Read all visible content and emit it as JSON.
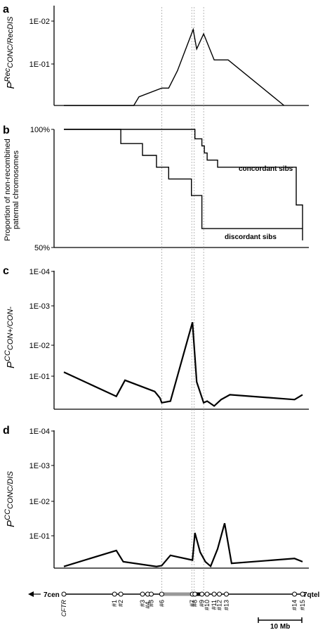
{
  "chart_data": [
    {
      "type": "line",
      "panel": "a",
      "ylabel_main": "P",
      "ylabel_sub": "Rec",
      "ylabel_sub2": "CONC/RecDIS",
      "y_ticks": [
        "1E-02",
        "1E-01"
      ],
      "series": [
        {
          "values": [
            [
              0,
              0
            ],
            [
              20,
              0
            ],
            [
              21.5,
              0.2
            ],
            [
              28,
              0.4
            ],
            [
              30,
              0.4
            ],
            [
              32.5,
              0.8
            ],
            [
              37,
              1.75
            ],
            [
              38,
              1.3
            ],
            [
              40,
              1.65
            ],
            [
              43,
              1.05
            ],
            [
              47,
              1.05
            ],
            [
              63,
              0
            ]
          ]
        }
      ],
      "ylim": [
        0,
        2.3
      ]
    },
    {
      "type": "line",
      "panel": "b",
      "ylabel_line1": "Proportion of non-recombined",
      "ylabel_line2": "paternal chromosomes",
      "y_ticks": [
        "100%",
        "50%"
      ],
      "annotations": [
        "concordant sibs",
        "discordant sibs"
      ],
      "series": [
        {
          "label_ref": "concordant",
          "values": [
            [
              0,
              1.0
            ],
            [
              37.5,
              1.0
            ],
            [
              37.5,
              0.96
            ],
            [
              39.5,
              0.96
            ],
            [
              39.5,
              0.93
            ],
            [
              40.2,
              0.93
            ],
            [
              40.2,
              0.9
            ],
            [
              41,
              0.9
            ],
            [
              41,
              0.87
            ],
            [
              44,
              0.87
            ],
            [
              44,
              0.84
            ],
            [
              66.5,
              0.84
            ],
            [
              66.5,
              0.68
            ],
            [
              68.3,
              0.68
            ],
            [
              68.3,
              0.53
            ]
          ]
        },
        {
          "label_ref": "discordant",
          "values": [
            [
              0,
              1.0
            ],
            [
              16.3,
              1.0
            ],
            [
              16.3,
              0.94
            ],
            [
              22.5,
              0.94
            ],
            [
              22.5,
              0.89
            ],
            [
              26.5,
              0.89
            ],
            [
              26.5,
              0.84
            ],
            [
              30,
              0.84
            ],
            [
              30,
              0.79
            ],
            [
              36.5,
              0.79
            ],
            [
              36.5,
              0.72
            ],
            [
              39.5,
              0.72
            ],
            [
              39.5,
              0.58
            ],
            [
              68.3,
              0.58
            ]
          ]
        }
      ]
    },
    {
      "type": "line",
      "panel": "c",
      "ylabel_main": "P",
      "ylabel_sub": "CC",
      "ylabel_sub2": "CON+/CON-",
      "y_ticks": [
        "1E-04",
        "1E-03",
        "1E-02",
        "1E-01"
      ],
      "series": [
        {
          "values": [
            [
              0,
              1.15
            ],
            [
              15,
              0.4
            ],
            [
              17.5,
              0.9
            ],
            [
              26,
              0.55
            ],
            [
              27.5,
              0.35
            ],
            [
              28,
              0.2
            ],
            [
              30.5,
              0.25
            ],
            [
              36.8,
              2.7
            ],
            [
              38,
              0.85
            ],
            [
              40,
              0.2
            ],
            [
              41,
              0.25
            ],
            [
              43,
              0.1
            ],
            [
              45,
              0.3
            ],
            [
              47.5,
              0.45
            ],
            [
              66,
              0.3
            ],
            [
              68.3,
              0.45
            ]
          ]
        }
      ],
      "ylim": [
        0,
        4.3
      ]
    },
    {
      "type": "line",
      "panel": "d",
      "ylabel_main": "P",
      "ylabel_sub": "CC",
      "ylabel_sub2": "CONC/DIS",
      "y_ticks": [
        "1E-04",
        "1E-03",
        "1E-02",
        "1E-01"
      ],
      "series": [
        {
          "values": [
            [
              0,
              0.05
            ],
            [
              15,
              0.55
            ],
            [
              17,
              0.2
            ],
            [
              26.5,
              0.05
            ],
            [
              28,
              0.08
            ],
            [
              30.5,
              0.4
            ],
            [
              36.8,
              0.25
            ],
            [
              37.5,
              1.1
            ],
            [
              39,
              0.5
            ],
            [
              40.5,
              0.2
            ],
            [
              42,
              0.06
            ],
            [
              44,
              0.6
            ],
            [
              46,
              1.4
            ],
            [
              48,
              0.15
            ],
            [
              66,
              0.3
            ],
            [
              68.3,
              0.2
            ]
          ]
        }
      ],
      "ylim": [
        0,
        4.3
      ]
    }
  ],
  "panel_labels": [
    "a",
    "b",
    "c",
    "d"
  ],
  "map": {
    "left_label": "7cen",
    "right_label": "7qtel",
    "cftr_label": "CFTR",
    "scale_label": "10 Mb",
    "markers": [
      {
        "label": "CFTR",
        "pos": 0
      },
      {
        "label": "#1",
        "pos": 14.5
      },
      {
        "label": "#2",
        "pos": 16.3
      },
      {
        "label": "#3",
        "pos": 22.5
      },
      {
        "label": "#4,",
        "pos": 24.0
      },
      {
        "label": "#5",
        "pos": 25.0
      },
      {
        "label": "#6",
        "pos": 28.0
      },
      {
        "label": "#7",
        "pos": 36.8
      },
      {
        "label": "#8",
        "pos": 37.5
      },
      {
        "label": "#9",
        "pos": 39.5
      },
      {
        "label": "#10",
        "pos": 41.0
      },
      {
        "label": "#11",
        "pos": 43.0
      },
      {
        "label": "#12",
        "pos": 44.5
      },
      {
        "label": "#13",
        "pos": 46.5
      },
      {
        "label": "#14",
        "pos": 66.0
      },
      {
        "label": "#15",
        "pos": 68.3
      }
    ],
    "dashed_positions": [
      28.0,
      36.6,
      37.3,
      40.0
    ]
  },
  "colors": {
    "line": "#000000",
    "grid": "#999999",
    "gray_segment": "#999999"
  }
}
